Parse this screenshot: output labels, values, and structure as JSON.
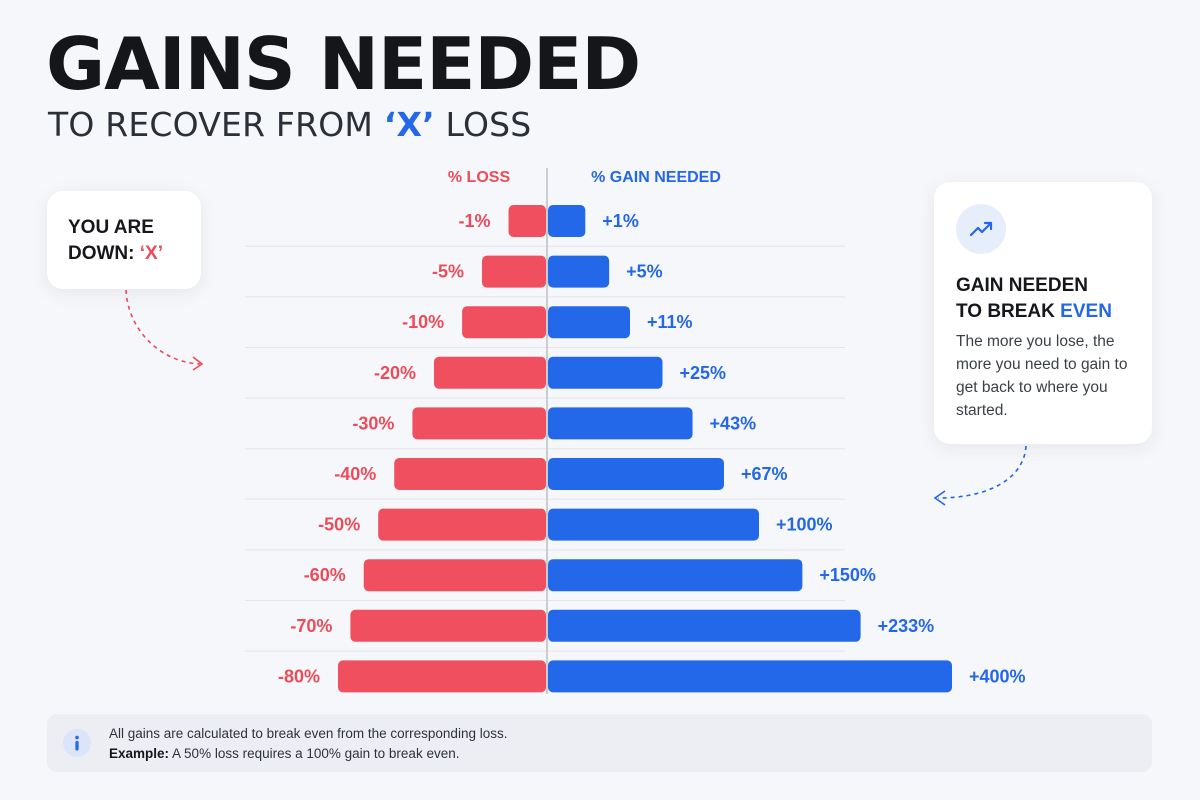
{
  "header": {
    "title": "GAINS NEEDED",
    "subtitle_prefix": "TO RECOVER FROM ",
    "subtitle_highlight": "‘X’",
    "subtitle_suffix": " LOSS"
  },
  "left_card": {
    "line1": "YOU ARE",
    "line2_prefix": "DOWN: ",
    "line2_highlight": "‘X’"
  },
  "right_card": {
    "icon": "trending-up-icon",
    "title_line1": "GAIN NEEDEN",
    "title_line2_prefix": "TO BREAK ",
    "title_line2_highlight": "EVEN",
    "body": "The more you lose, the more you need to gain to get back to where you started."
  },
  "footnote": {
    "icon": "info-icon",
    "line1": "All gains are calculated to break even from the corresponding loss.",
    "line2_label": "Example:",
    "line2_text": " A 50% loss requires a 100% gain to break even."
  },
  "colors": {
    "loss": "#ef4f5f",
    "gain": "#2468ea",
    "loss_text": "#ec4b5a",
    "gain_text": "#2467e8"
  },
  "chart_data": {
    "type": "bar",
    "orientation": "horizontal-diverging",
    "series": [
      {
        "name": "% LOSS",
        "values": [
          -1,
          -5,
          -10,
          -20,
          -30,
          -40,
          -50,
          -60,
          -70,
          -80
        ],
        "labels": [
          "-1%",
          "-5%",
          "-10%",
          "-20%",
          "-30%",
          "-40%",
          "-50%",
          "-60%",
          "-70%",
          "-80%"
        ]
      },
      {
        "name": "% GAIN NEEDED",
        "values": [
          1,
          5,
          11,
          25,
          43,
          67,
          100,
          150,
          233,
          400
        ],
        "labels": [
          "+1%",
          "+5%",
          "+11%",
          "+25%",
          "+43%",
          "+67%",
          "+100%",
          "+150%",
          "+233%",
          "+400%"
        ]
      }
    ],
    "grid": true,
    "legend": "top-center"
  }
}
